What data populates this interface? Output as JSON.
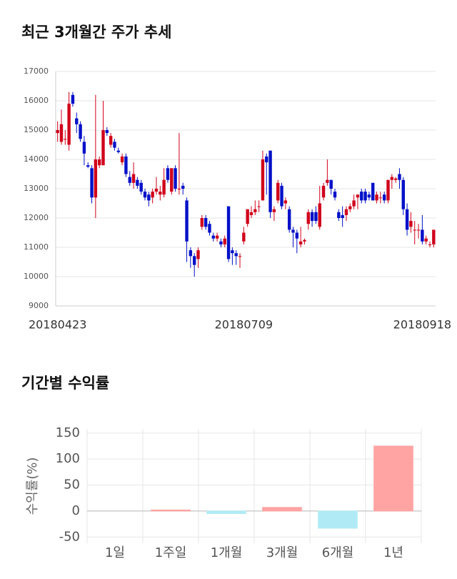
{
  "chart_data": [
    {
      "type": "candlestick",
      "title": "최근 3개월간 주가 추세",
      "categories": [
        "20180423",
        null,
        null,
        null,
        null,
        null,
        null,
        null,
        null,
        null,
        null,
        null,
        null,
        null,
        null,
        null,
        null,
        null,
        null,
        null,
        null,
        null,
        null,
        null,
        null,
        null,
        null,
        null,
        null,
        null,
        null,
        null,
        null,
        null,
        null,
        null,
        null,
        null,
        null,
        null,
        null,
        null,
        null,
        null,
        null,
        null,
        null,
        null,
        null,
        "20180709",
        null,
        null,
        null,
        null,
        null,
        null,
        null,
        null,
        null,
        null,
        null,
        null,
        null,
        null,
        null,
        null,
        null,
        null,
        null,
        null,
        null,
        null,
        null,
        null,
        null,
        null,
        null,
        null,
        null,
        null,
        null,
        null,
        null,
        null,
        null,
        null,
        null,
        null,
        null,
        null,
        null,
        null,
        null,
        null,
        null,
        null,
        "20180918",
        null,
        null,
        null
      ],
      "open": [
        14900,
        14600,
        14700,
        14500,
        16200,
        15400,
        15200,
        14600,
        13800,
        13700,
        12700,
        13800,
        13800,
        15000,
        14500,
        14600,
        14300,
        13900,
        14100,
        13400,
        13200,
        13300,
        13200,
        12900,
        12800,
        12700,
        12900,
        12800,
        12800,
        13700,
        12900,
        13700,
        13000,
        13100,
        12600,
        10900,
        10700,
        10600,
        11700,
        12000,
        11800,
        11400,
        11300,
        11200,
        11100,
        12400,
        10900,
        10800,
        10700,
        11200,
        11800,
        12100,
        12200,
        12400,
        12600,
        14100,
        14300,
        12200,
        12600,
        13100,
        12500,
        12300,
        11600,
        11500,
        11100,
        11200,
        11800,
        12200,
        12200,
        11700,
        12700,
        13200,
        13300,
        12900,
        12200,
        12100,
        12100,
        12300,
        12400,
        12700,
        12900,
        12900,
        12800,
        13200,
        12600,
        12700,
        12800,
        12600,
        13300,
        13300,
        13500,
        13300,
        12300,
        11700,
        11600,
        11600,
        11600,
        11200,
        11100,
        11100
      ],
      "high": [
        15300,
        15700,
        15000,
        16300,
        16300,
        15600,
        15300,
        14800,
        13900,
        13800,
        16200,
        14100,
        16000,
        15100,
        14900,
        14700,
        14400,
        14200,
        14200,
        13600,
        13900,
        13400,
        13300,
        13000,
        12900,
        13000,
        13400,
        13100,
        13700,
        13800,
        13700,
        13800,
        14900,
        13200,
        12700,
        11000,
        10800,
        11000,
        12100,
        12100,
        11900,
        11500,
        11500,
        11300,
        11400,
        12400,
        11000,
        10900,
        10800,
        11700,
        12300,
        12400,
        12600,
        12600,
        14300,
        14200,
        14300,
        12400,
        13300,
        13200,
        12700,
        12400,
        11700,
        11600,
        11700,
        11300,
        12300,
        12300,
        12400,
        13100,
        13200,
        14000,
        13300,
        13000,
        12300,
        12400,
        12400,
        12500,
        12800,
        12800,
        13000,
        13000,
        12900,
        13200,
        12900,
        12900,
        12900,
        13300,
        13500,
        13400,
        13700,
        13400,
        12500,
        12200,
        11900,
        11800,
        12100,
        11400,
        11200,
        11600
      ],
      "low": [
        14600,
        14500,
        14500,
        14300,
        15800,
        14900,
        14600,
        13800,
        13700,
        12500,
        12000,
        13700,
        13800,
        14800,
        14400,
        14300,
        14200,
        13800,
        13400,
        13100,
        13000,
        13000,
        12800,
        12600,
        12400,
        12500,
        12800,
        12600,
        12700,
        13200,
        12800,
        12900,
        12800,
        12800,
        10500,
        10300,
        10000,
        10300,
        11600,
        11600,
        11400,
        11200,
        11200,
        11000,
        11000,
        10500,
        10400,
        10400,
        10300,
        11100,
        11700,
        12000,
        12100,
        12200,
        12600,
        12800,
        12000,
        11900,
        12500,
        12300,
        12300,
        11500,
        11000,
        10800,
        11000,
        11100,
        11600,
        11700,
        11800,
        11600,
        12600,
        13100,
        12800,
        12600,
        11900,
        11700,
        11900,
        12200,
        12300,
        12300,
        12500,
        12500,
        12600,
        12600,
        12500,
        12500,
        12500,
        12500,
        13000,
        13200,
        13000,
        12100,
        11400,
        11500,
        11100,
        11300,
        11100,
        11100,
        11000,
        11000
      ],
      "close": [
        15000,
        15200,
        14700,
        15900,
        15900,
        15200,
        14700,
        14200,
        13750,
        12700,
        14000,
        14000,
        15000,
        14900,
        14800,
        14400,
        14250,
        14100,
        13500,
        13200,
        13500,
        13100,
        12900,
        12700,
        12600,
        12900,
        13000,
        12900,
        13300,
        13300,
        13700,
        13000,
        13000,
        13000,
        11200,
        10700,
        10400,
        10900,
        12000,
        11700,
        11500,
        11300,
        11400,
        11100,
        11300,
        10600,
        10800,
        10700,
        10700,
        11500,
        12300,
        12200,
        12300,
        12400,
        14000,
        13900,
        12200,
        12300,
        13200,
        12400,
        12600,
        11600,
        11500,
        11300,
        11200,
        11250,
        12200,
        11900,
        11900,
        12500,
        13100,
        13300,
        13000,
        12700,
        12000,
        12000,
        12300,
        12400,
        12600,
        12800,
        12600,
        12600,
        12700,
        12600,
        12800,
        12700,
        12600,
        13300,
        13400,
        13350,
        13300,
        12300,
        11600,
        11900,
        11600,
        11600,
        11200,
        11300,
        11100,
        11600
      ],
      "up_color": "#d0021b",
      "down_color": "#0010c8",
      "ylim": [
        9000,
        17000
      ],
      "yticks": [
        9000,
        10000,
        11000,
        12000,
        13000,
        14000,
        15000,
        16000,
        17000
      ],
      "grid": true
    },
    {
      "type": "bar",
      "title": "기간별 수익률",
      "ylabel": "수익률(%)",
      "categories": [
        "1일",
        "1주일",
        "1개월",
        "3개월",
        "6개월",
        "1년"
      ],
      "values": [
        0,
        2,
        -5,
        7,
        -33,
        125
      ],
      "colors": [
        "#ffa3a3",
        "#ffa3a3",
        "#b0ebf5",
        "#ffa3a3",
        "#b0ebf5",
        "#ffa3a3"
      ],
      "ylim": [
        -62,
        158
      ],
      "yticks": [
        -50,
        0,
        50,
        100,
        150
      ],
      "grid": true
    }
  ]
}
